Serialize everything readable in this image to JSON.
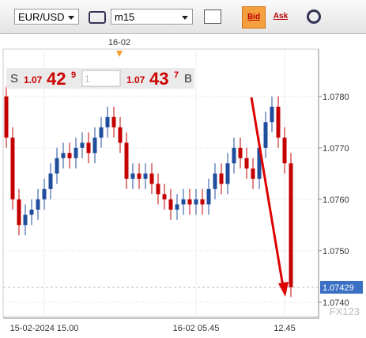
{
  "toolbar": {
    "symbol": "EUR/USD",
    "timeframe": "m15",
    "bid": "Bid",
    "ask": "Ask"
  },
  "quote": {
    "sell_label": "S",
    "sell_big": "1.07",
    "sell_pips": "42",
    "sell_frac": "9",
    "amount": "1",
    "buy_big": "1.07",
    "buy_pips": "43",
    "buy_frac": "7",
    "buy_label": "B"
  },
  "chart_data": {
    "type": "candlestick",
    "categories": [
      null,
      null,
      null,
      null,
      null,
      null,
      "15-02-2024 15.00",
      null,
      null,
      null,
      null,
      null,
      null,
      null,
      null,
      null,
      null,
      null,
      null,
      null,
      null,
      null,
      null,
      null,
      null,
      null,
      null,
      null,
      null,
      null,
      "16-02 05.45",
      null,
      null,
      null,
      null,
      null,
      null,
      null,
      null,
      null,
      null,
      null,
      null,
      null,
      "12.45",
      null
    ],
    "open": [
      1.078,
      1.0772,
      1.076,
      1.0755,
      1.0757,
      1.0758,
      1.076,
      1.0762,
      1.0765,
      1.0768,
      1.0769,
      1.0768,
      1.077,
      1.0771,
      1.0769,
      1.0772,
      1.0774,
      1.0776,
      1.0774,
      1.0771,
      1.0764,
      1.0765,
      1.0764,
      1.0765,
      1.0763,
      1.0761,
      1.076,
      1.0758,
      1.0759,
      1.076,
      1.0759,
      1.076,
      1.0759,
      1.0762,
      1.0765,
      1.0763,
      1.0767,
      1.077,
      1.0768,
      1.0766,
      1.0764,
      1.077,
      1.0775,
      1.0778,
      1.0772,
      1.0767
    ],
    "high": [
      1.0782,
      1.0774,
      1.0762,
      1.0759,
      1.076,
      1.0762,
      1.0764,
      1.0767,
      1.077,
      1.0771,
      1.0771,
      1.0772,
      1.0773,
      1.0773,
      1.0774,
      1.0776,
      1.0778,
      1.0778,
      1.0776,
      1.0773,
      1.0767,
      1.0767,
      1.0767,
      1.0767,
      1.0765,
      1.0763,
      1.0762,
      1.0761,
      1.0762,
      1.0762,
      1.0762,
      1.0762,
      1.0764,
      1.0767,
      1.0767,
      1.0769,
      1.0772,
      1.0772,
      1.077,
      1.0768,
      1.0772,
      1.0777,
      1.078,
      1.078,
      1.0774,
      1.0769
    ],
    "low": [
      1.077,
      1.0758,
      1.0753,
      1.0753,
      1.0755,
      1.0756,
      1.0758,
      1.076,
      1.0763,
      1.0766,
      1.0766,
      1.0766,
      1.0768,
      1.0767,
      1.0767,
      1.077,
      1.0772,
      1.0772,
      1.0769,
      1.0762,
      1.0762,
      1.0762,
      1.0762,
      1.0761,
      1.0759,
      1.0758,
      1.0756,
      1.0756,
      1.0757,
      1.0757,
      1.0757,
      1.0757,
      1.0757,
      1.076,
      1.0761,
      1.0761,
      1.0765,
      1.0766,
      1.0764,
      1.0762,
      1.0762,
      1.0768,
      1.0773,
      1.077,
      1.0765,
      1.0741
    ],
    "close": [
      1.0772,
      1.076,
      1.0755,
      1.0757,
      1.0758,
      1.076,
      1.0762,
      1.0765,
      1.0768,
      1.0769,
      1.0768,
      1.077,
      1.0771,
      1.0769,
      1.0772,
      1.0774,
      1.0776,
      1.0774,
      1.0771,
      1.0764,
      1.0765,
      1.0764,
      1.0765,
      1.0763,
      1.0761,
      1.076,
      1.0758,
      1.0759,
      1.076,
      1.0759,
      1.076,
      1.0759,
      1.0762,
      1.0765,
      1.0763,
      1.0767,
      1.077,
      1.0768,
      1.0766,
      1.0764,
      1.077,
      1.0775,
      1.0778,
      1.0772,
      1.0767,
      1.07429
    ],
    "up_color": "#1f4e9c",
    "down_color": "#c40000",
    "ylim": [
      1.07372,
      1.07892
    ],
    "yticks": [
      {
        "value": 1.074,
        "label": "1.0740"
      },
      {
        "value": 1.075,
        "label": "1.0750"
      },
      {
        "value": 1.076,
        "label": "1.0760"
      },
      {
        "value": 1.077,
        "label": "1.0770"
      },
      {
        "value": 1.078,
        "label": "1.0780"
      }
    ],
    "current_price": 1.07429,
    "day_marker": "16-02",
    "watermark": "FX123",
    "grid": true
  }
}
